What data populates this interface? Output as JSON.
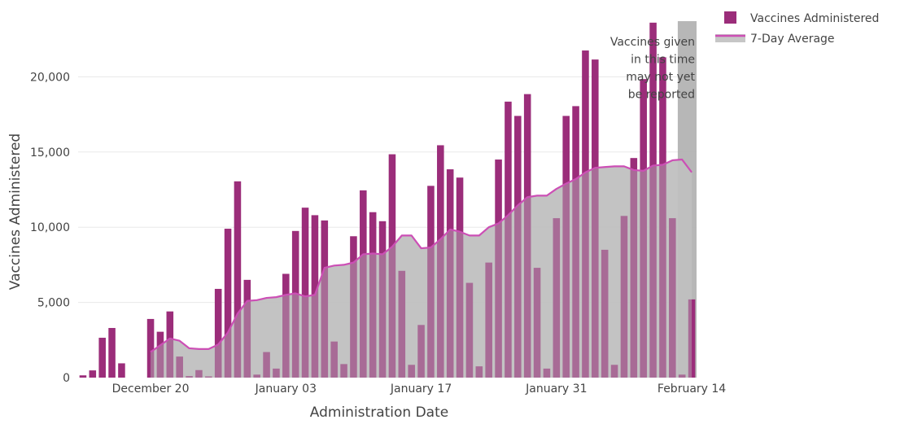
{
  "chart_data": {
    "type": "bar",
    "xlabel": "Administration Date",
    "ylabel": "Vaccines Administered",
    "ylim": [
      0,
      23700
    ],
    "grid": true,
    "legend_position": "top-right",
    "x_tick_labels": [
      "December 20",
      "January 03",
      "January 17",
      "January 31",
      "February 14"
    ],
    "y_tick_labels": [
      "0",
      "5,000",
      "10,000",
      "15,000",
      "20,000"
    ],
    "y_tick_values": [
      0,
      5000,
      10000,
      15000,
      20000
    ],
    "series": [
      {
        "name": "Vaccines Administered",
        "kind": "bar",
        "color": "#9b2d7a",
        "values": [
          150,
          480,
          2650,
          3300,
          950,
          0,
          0,
          3900,
          3050,
          4400,
          1400,
          100,
          500,
          80,
          5900,
          9900,
          13050,
          6500,
          200,
          1700,
          600,
          6900,
          9750,
          11300,
          10800,
          10450,
          2400,
          900,
          9400,
          12450,
          11000,
          10400,
          14850,
          7100,
          850,
          3500,
          12750,
          15450,
          13850,
          13300,
          6300,
          750,
          7650,
          14500,
          18350,
          17400,
          18850,
          7300,
          600,
          10600,
          17400,
          18050,
          21750,
          21150,
          8500,
          850,
          10750,
          14600,
          19850,
          23600,
          21300,
          10600,
          200,
          5200
        ]
      },
      {
        "name": "7-Day Average",
        "kind": "line",
        "color": "#cc4fb5",
        "fill_color": "#c6c6c6",
        "values": [
          null,
          null,
          null,
          null,
          null,
          null,
          null,
          1700,
          2150,
          2600,
          2450,
          1950,
          1900,
          1900,
          2200,
          3000,
          4250,
          5100,
          5150,
          5300,
          5350,
          5500,
          5600,
          5400,
          5500,
          7300,
          7450,
          7500,
          7650,
          8200,
          8250,
          8200,
          8700,
          9450,
          9450,
          8600,
          8650,
          9200,
          9850,
          9700,
          9450,
          9450,
          10000,
          10250,
          10800,
          11450,
          12000,
          12100,
          12100,
          12550,
          12900,
          13200,
          13650,
          13950,
          14000,
          14050,
          14050,
          13800,
          13750,
          14100,
          14150,
          14450,
          14500,
          13650
        ]
      }
    ],
    "start_date": "Dec 13",
    "shaded_region": {
      "start_index": 62,
      "end_index": 63,
      "color": "#b3b3b3"
    },
    "annotation": "Vaccines given\nin this time\nmay not yet\nbe reported"
  }
}
